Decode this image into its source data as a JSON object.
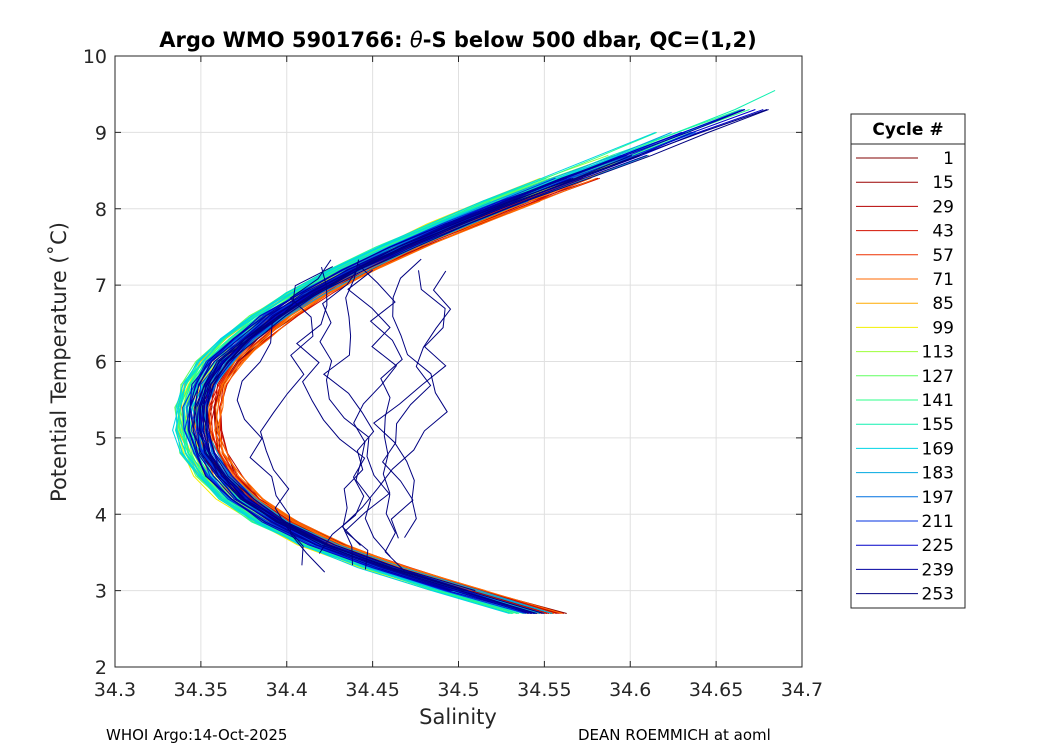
{
  "chart_data": {
    "type": "line",
    "title_prefix": "Argo WMO 5901766: ",
    "title_theta": "θ",
    "title_suffix": "-S below 500 dbar,  QC=(1,2)",
    "xlabel": "Salinity",
    "ylabel": "Potential Temperature (˚C)",
    "xlim": [
      34.3,
      34.7
    ],
    "ylim": [
      2,
      10
    ],
    "xticks": [
      34.3,
      34.35,
      34.4,
      34.45,
      34.5,
      34.55,
      34.6,
      34.65,
      34.7
    ],
    "xtick_labels": [
      "34.3",
      "34.35",
      "34.4",
      "34.45",
      "34.5",
      "34.55",
      "34.6",
      "34.65",
      "34.7"
    ],
    "yticks": [
      2,
      3,
      4,
      5,
      6,
      7,
      8,
      9,
      10
    ],
    "ytick_labels": [
      "2",
      "3",
      "4",
      "5",
      "6",
      "7",
      "8",
      "9",
      "10"
    ],
    "grid": true,
    "legend_position": "outside-right",
    "legend_title": "Cycle #",
    "legend": [
      {
        "label": "1",
        "color": "#800000"
      },
      {
        "label": "15",
        "color": "#9a0000"
      },
      {
        "label": "29",
        "color": "#b40000"
      },
      {
        "label": "43",
        "color": "#d21000"
      },
      {
        "label": "57",
        "color": "#ee3000"
      },
      {
        "label": "71",
        "color": "#ff6a00"
      },
      {
        "label": "85",
        "color": "#ffaa00"
      },
      {
        "label": "99",
        "color": "#f2f000"
      },
      {
        "label": "113",
        "color": "#9dff3a"
      },
      {
        "label": "127",
        "color": "#60ff60"
      },
      {
        "label": "141",
        "color": "#2dff8a"
      },
      {
        "label": "155",
        "color": "#10f0b0"
      },
      {
        "label": "169",
        "color": "#00d4e6"
      },
      {
        "label": "183",
        "color": "#00a8e0"
      },
      {
        "label": "197",
        "color": "#0070e0"
      },
      {
        "label": "211",
        "color": "#0030e0"
      },
      {
        "label": "225",
        "color": "#0000c8"
      },
      {
        "label": "239",
        "color": "#0000a0"
      },
      {
        "label": "253",
        "color": "#000080"
      }
    ],
    "typical_profile": {
      "theta": [
        2.55,
        2.7,
        3.0,
        3.3,
        3.6,
        3.9,
        4.2,
        4.5,
        4.8,
        5.1,
        5.4,
        5.7,
        6.0,
        6.3,
        6.6,
        6.9,
        7.2,
        7.5,
        7.8,
        8.1,
        8.4,
        8.7,
        9.0,
        9.3,
        9.55
      ],
      "salinity": [
        34.563,
        34.545,
        34.5,
        34.457,
        34.42,
        34.393,
        34.373,
        34.36,
        34.352,
        34.348,
        34.348,
        34.352,
        34.361,
        34.375,
        34.392,
        34.413,
        34.438,
        34.466,
        34.497,
        34.53,
        34.565,
        34.6,
        34.635,
        34.67,
        34.695
      ]
    }
  },
  "footer": {
    "left": "WHOI Argo:14-Oct-2025",
    "right": "DEAN ROEMMICH at aoml"
  }
}
